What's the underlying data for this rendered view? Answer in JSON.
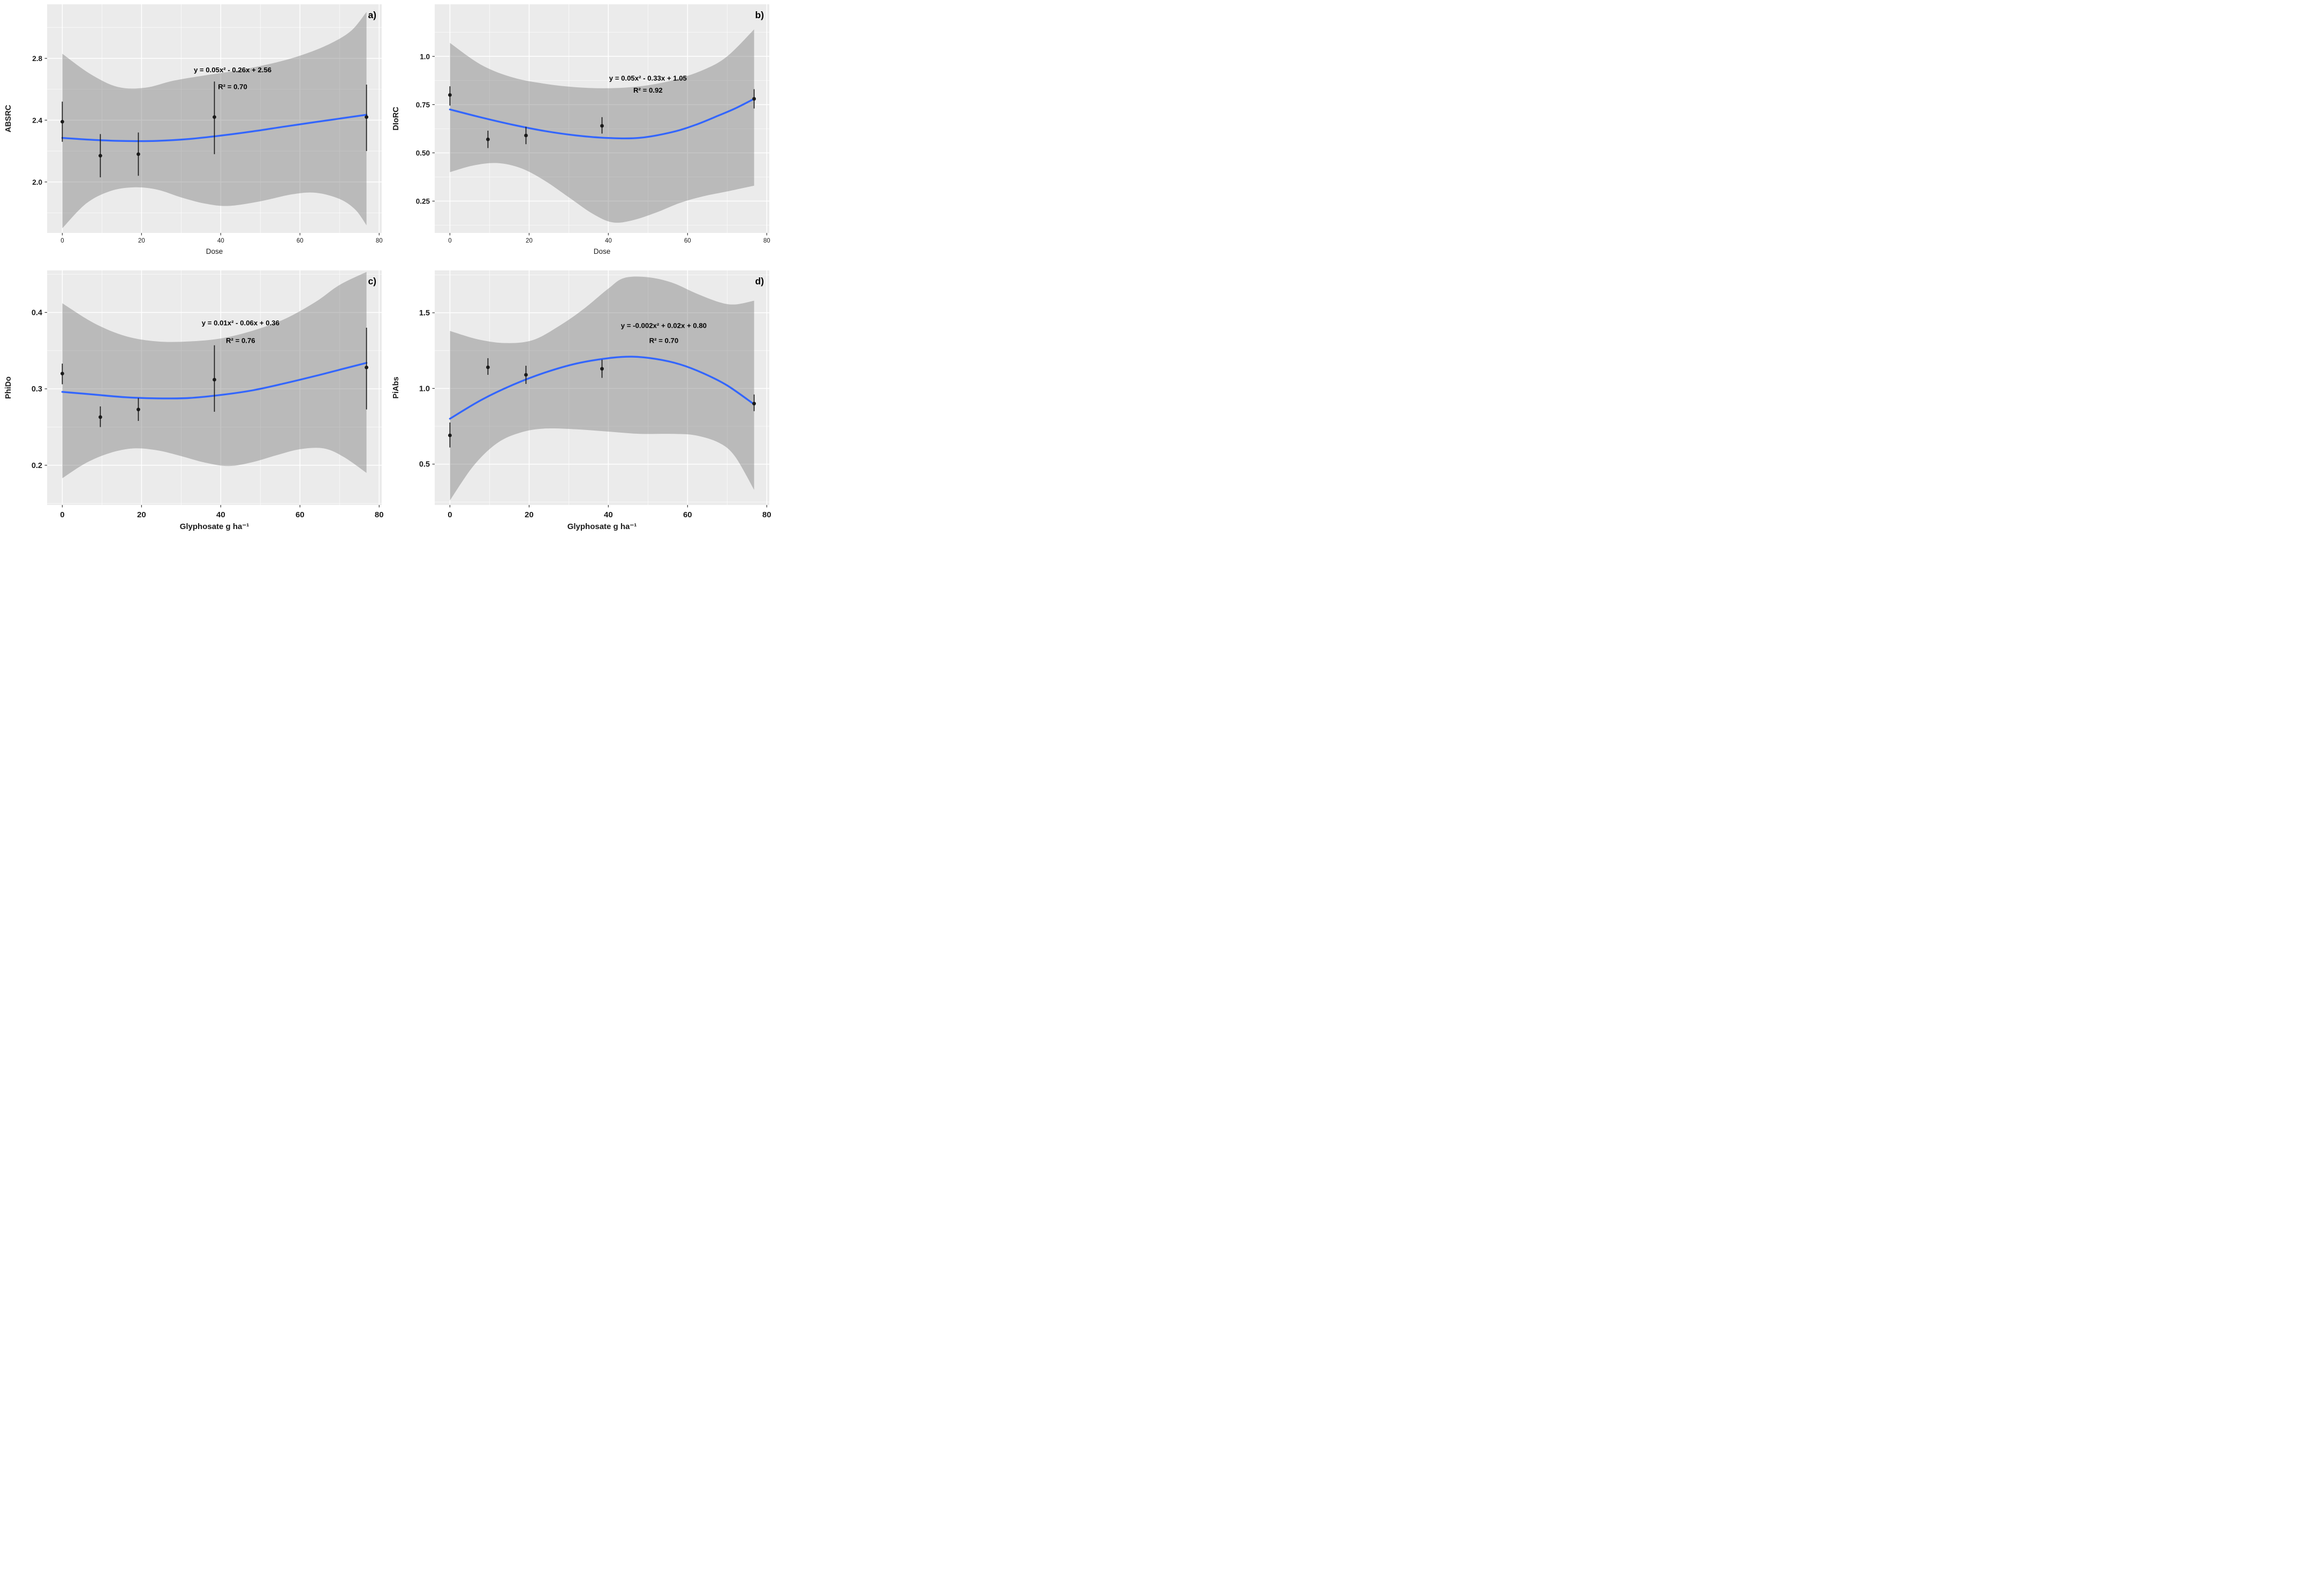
{
  "figure": {
    "background": "#ffffff",
    "panel_background": "#ebebeb",
    "grid_color": "#ffffff",
    "band_color": "rgba(120,120,120,0.42)",
    "line_color": "#3366ff",
    "point_color": "#1a1a1a",
    "tick_mark_color": "#333333",
    "axis_text_color": "#1a1a1a",
    "annotation_color": "#000000"
  },
  "chart_data": [
    {
      "id": "a",
      "type": "scatter",
      "letter": "a)",
      "ylabel": "ABSRC",
      "xlabel": "Dose",
      "equation": "y = 0.05x² - 0.26x + 2.56",
      "r_squared": "R² = 0.70",
      "x_domain": [
        -3.84,
        80.64
      ],
      "y_domain": [
        1.67,
        3.15
      ],
      "x_ticks": [
        0,
        20,
        40,
        60,
        80
      ],
      "x_tick_labels": [
        "0",
        "20",
        "40",
        "60",
        "80"
      ],
      "x_minor": [
        10,
        30,
        50,
        70
      ],
      "y_ticks": [
        2.0,
        2.4,
        2.8
      ],
      "y_tick_labels": [
        "2.0",
        "2.4",
        "2.8"
      ],
      "y_minor": [
        1.8,
        2.2,
        2.6,
        3.0
      ],
      "points": [
        {
          "x": 0,
          "y": 2.39,
          "lo": 2.26,
          "hi": 2.52
        },
        {
          "x": 9.6,
          "y": 2.17,
          "lo": 2.03,
          "hi": 2.31
        },
        {
          "x": 19.2,
          "y": 2.18,
          "lo": 2.04,
          "hi": 2.32
        },
        {
          "x": 38.4,
          "y": 2.42,
          "lo": 2.18,
          "hi": 2.65
        },
        {
          "x": 76.8,
          "y": 2.42,
          "lo": 2.2,
          "hi": 2.63
        }
      ],
      "fit_line": [
        [
          0,
          2.285
        ],
        [
          8,
          2.272
        ],
        [
          16,
          2.265
        ],
        [
          24,
          2.266
        ],
        [
          32,
          2.278
        ],
        [
          40,
          2.3
        ],
        [
          48,
          2.327
        ],
        [
          56,
          2.358
        ],
        [
          64,
          2.388
        ],
        [
          70,
          2.41
        ],
        [
          76.8,
          2.435
        ]
      ],
      "band_upper": [
        [
          0,
          2.83
        ],
        [
          7,
          2.7
        ],
        [
          14,
          2.615
        ],
        [
          21,
          2.61
        ],
        [
          28,
          2.655
        ],
        [
          36,
          2.69
        ],
        [
          45,
          2.725
        ],
        [
          55,
          2.78
        ],
        [
          62,
          2.835
        ],
        [
          68,
          2.9
        ],
        [
          73,
          2.98
        ],
        [
          76.8,
          3.1
        ]
      ],
      "band_lower": [
        [
          0,
          1.7
        ],
        [
          6,
          1.86
        ],
        [
          12,
          1.94
        ],
        [
          18,
          1.965
        ],
        [
          24,
          1.95
        ],
        [
          30,
          1.9
        ],
        [
          36,
          1.86
        ],
        [
          42,
          1.845
        ],
        [
          50,
          1.875
        ],
        [
          58,
          1.92
        ],
        [
          64,
          1.93
        ],
        [
          70,
          1.89
        ],
        [
          74,
          1.82
        ],
        [
          76.8,
          1.72
        ]
      ],
      "equation_pos": {
        "x": 43,
        "y": 2.71
      },
      "r2_pos": {
        "x": 43,
        "y": 2.6
      },
      "axis_style": "small"
    },
    {
      "id": "b",
      "type": "scatter",
      "letter": "b)",
      "ylabel": "DIoRC",
      "xlabel": "Dose",
      "equation": "y = 0.05x² - 0.33x + 1.05",
      "r_squared": "R² = 0.92",
      "x_domain": [
        -3.84,
        80.64
      ],
      "y_domain": [
        0.085,
        1.27
      ],
      "x_ticks": [
        0,
        20,
        40,
        60,
        80
      ],
      "x_tick_labels": [
        "0",
        "20",
        "40",
        "60",
        "80"
      ],
      "x_minor": [
        10,
        30,
        50,
        70
      ],
      "y_ticks": [
        0.25,
        0.5,
        0.75,
        1.0
      ],
      "y_tick_labels": [
        "0.25",
        "0.50",
        "0.75",
        "1.0"
      ],
      "y_minor": [
        0.125,
        0.375,
        0.625,
        0.875,
        1.125
      ],
      "points": [
        {
          "x": 0,
          "y": 0.8,
          "lo": 0.745,
          "hi": 0.845
        },
        {
          "x": 9.6,
          "y": 0.57,
          "lo": 0.525,
          "hi": 0.615
        },
        {
          "x": 19.2,
          "y": 0.59,
          "lo": 0.545,
          "hi": 0.635
        },
        {
          "x": 38.4,
          "y": 0.64,
          "lo": 0.6,
          "hi": 0.685
        },
        {
          "x": 76.8,
          "y": 0.78,
          "lo": 0.73,
          "hi": 0.83
        }
      ],
      "fit_line": [
        [
          0,
          0.725
        ],
        [
          8,
          0.683
        ],
        [
          16,
          0.645
        ],
        [
          24,
          0.613
        ],
        [
          32,
          0.59
        ],
        [
          40,
          0.577
        ],
        [
          48,
          0.578
        ],
        [
          56,
          0.607
        ],
        [
          62,
          0.645
        ],
        [
          68,
          0.695
        ],
        [
          72,
          0.73
        ],
        [
          76.8,
          0.78
        ]
      ],
      "band_upper": [
        [
          0,
          1.07
        ],
        [
          8,
          0.955
        ],
        [
          16,
          0.89
        ],
        [
          24,
          0.858
        ],
        [
          32,
          0.84
        ],
        [
          40,
          0.835
        ],
        [
          48,
          0.845
        ],
        [
          56,
          0.875
        ],
        [
          64,
          0.93
        ],
        [
          70,
          1.0
        ],
        [
          76.8,
          1.14
        ]
      ],
      "band_lower": [
        [
          0,
          0.4
        ],
        [
          6,
          0.435
        ],
        [
          12,
          0.447
        ],
        [
          18,
          0.42
        ],
        [
          24,
          0.355
        ],
        [
          30,
          0.27
        ],
        [
          36,
          0.185
        ],
        [
          41,
          0.14
        ],
        [
          46,
          0.15
        ],
        [
          52,
          0.19
        ],
        [
          58,
          0.24
        ],
        [
          64,
          0.275
        ],
        [
          70,
          0.3
        ],
        [
          76.8,
          0.33
        ]
      ],
      "equation_pos": {
        "x": 50,
        "y": 0.875
      },
      "r2_pos": {
        "x": 50,
        "y": 0.812
      },
      "axis_style": "small"
    },
    {
      "id": "c",
      "type": "scatter",
      "letter": "c)",
      "ylabel": "PhiDo",
      "xlabel": "Glyphosate g ha⁻¹",
      "equation": "y = 0.01x² - 0.06x + 0.36",
      "r_squared": "R² = 0.76",
      "x_domain": [
        -3.84,
        80.64
      ],
      "y_domain": [
        0.148,
        0.455
      ],
      "x_ticks": [
        0,
        20,
        40,
        60,
        80
      ],
      "x_tick_labels": [
        "0",
        "20",
        "40",
        "60",
        "80"
      ],
      "x_minor": [
        10,
        30,
        50,
        70
      ],
      "y_ticks": [
        0.2,
        0.3,
        0.4
      ],
      "y_tick_labels": [
        "0.2",
        "0.3",
        "0.4"
      ],
      "y_minor": [
        0.15,
        0.25,
        0.35,
        0.45
      ],
      "points": [
        {
          "x": 0,
          "y": 0.32,
          "lo": 0.306,
          "hi": 0.333
        },
        {
          "x": 9.6,
          "y": 0.263,
          "lo": 0.25,
          "hi": 0.277
        },
        {
          "x": 19.2,
          "y": 0.273,
          "lo": 0.258,
          "hi": 0.288
        },
        {
          "x": 38.4,
          "y": 0.312,
          "lo": 0.27,
          "hi": 0.357
        },
        {
          "x": 76.8,
          "y": 0.328,
          "lo": 0.273,
          "hi": 0.38
        }
      ],
      "fit_line": [
        [
          0,
          0.296
        ],
        [
          8,
          0.2925
        ],
        [
          16,
          0.289
        ],
        [
          24,
          0.2875
        ],
        [
          32,
          0.288
        ],
        [
          40,
          0.292
        ],
        [
          48,
          0.298
        ],
        [
          56,
          0.307
        ],
        [
          64,
          0.317
        ],
        [
          70,
          0.325
        ],
        [
          76.8,
          0.334
        ]
      ],
      "band_upper": [
        [
          0,
          0.412
        ],
        [
          8,
          0.386
        ],
        [
          16,
          0.369
        ],
        [
          24,
          0.362
        ],
        [
          32,
          0.362
        ],
        [
          40,
          0.366
        ],
        [
          48,
          0.376
        ],
        [
          56,
          0.391
        ],
        [
          64,
          0.414
        ],
        [
          70,
          0.436
        ],
        [
          76.8,
          0.453
        ]
      ],
      "band_lower": [
        [
          0,
          0.183
        ],
        [
          6,
          0.203
        ],
        [
          12,
          0.216
        ],
        [
          18,
          0.222
        ],
        [
          24,
          0.2195
        ],
        [
          30,
          0.212
        ],
        [
          36,
          0.2035
        ],
        [
          42,
          0.199
        ],
        [
          48,
          0.204
        ],
        [
          54,
          0.213
        ],
        [
          60,
          0.221
        ],
        [
          66,
          0.222
        ],
        [
          71,
          0.211
        ],
        [
          76.8,
          0.19
        ]
      ],
      "equation_pos": {
        "x": 45,
        "y": 0.383
      },
      "r2_pos": {
        "x": 45,
        "y": 0.36
      },
      "axis_style": "large"
    },
    {
      "id": "d",
      "type": "scatter",
      "letter": "d)",
      "ylabel": "PiAbs",
      "xlabel": "Glyphosate g ha⁻¹",
      "equation": "y = -0.002x² + 0.02x + 0.80",
      "r_squared": "R² = 0.70",
      "x_domain": [
        -3.84,
        80.64
      ],
      "y_domain": [
        0.23,
        1.78
      ],
      "x_ticks": [
        0,
        20,
        40,
        60,
        80
      ],
      "x_tick_labels": [
        "0",
        "20",
        "40",
        "60",
        "80"
      ],
      "x_minor": [
        10,
        30,
        50,
        70
      ],
      "y_ticks": [
        0.5,
        1.0,
        1.5
      ],
      "y_tick_labels": [
        "0.5",
        "1.0",
        "1.5"
      ],
      "y_minor": [
        0.25,
        0.75,
        1.25,
        1.75
      ],
      "points": [
        {
          "x": 0,
          "y": 0.69,
          "lo": 0.61,
          "hi": 0.775
        },
        {
          "x": 9.6,
          "y": 1.14,
          "lo": 1.09,
          "hi": 1.2
        },
        {
          "x": 19.2,
          "y": 1.09,
          "lo": 1.03,
          "hi": 1.15
        },
        {
          "x": 38.4,
          "y": 1.13,
          "lo": 1.07,
          "hi": 1.19
        },
        {
          "x": 76.8,
          "y": 0.9,
          "lo": 0.85,
          "hi": 0.96
        }
      ],
      "fit_line": [
        [
          0,
          0.8
        ],
        [
          8,
          0.925
        ],
        [
          16,
          1.025
        ],
        [
          24,
          1.105
        ],
        [
          32,
          1.165
        ],
        [
          40,
          1.2
        ],
        [
          46,
          1.21
        ],
        [
          52,
          1.195
        ],
        [
          58,
          1.16
        ],
        [
          64,
          1.1
        ],
        [
          70,
          1.02
        ],
        [
          76.8,
          0.895
        ]
      ],
      "band_upper": [
        [
          0,
          1.38
        ],
        [
          7,
          1.325
        ],
        [
          14,
          1.3
        ],
        [
          21,
          1.32
        ],
        [
          28,
          1.42
        ],
        [
          34,
          1.53
        ],
        [
          40,
          1.66
        ],
        [
          44,
          1.73
        ],
        [
          50,
          1.735
        ],
        [
          56,
          1.7
        ],
        [
          62,
          1.63
        ],
        [
          68,
          1.57
        ],
        [
          72,
          1.555
        ],
        [
          76.8,
          1.58
        ]
      ],
      "band_lower": [
        [
          0,
          0.26
        ],
        [
          6,
          0.49
        ],
        [
          12,
          0.64
        ],
        [
          18,
          0.71
        ],
        [
          24,
          0.735
        ],
        [
          32,
          0.73
        ],
        [
          40,
          0.715
        ],
        [
          48,
          0.7
        ],
        [
          56,
          0.7
        ],
        [
          62,
          0.69
        ],
        [
          68,
          0.64
        ],
        [
          72,
          0.55
        ],
        [
          76.8,
          0.33
        ]
      ],
      "equation_pos": {
        "x": 54,
        "y": 1.4
      },
      "r2_pos": {
        "x": 54,
        "y": 1.3
      },
      "axis_style": "large"
    }
  ]
}
